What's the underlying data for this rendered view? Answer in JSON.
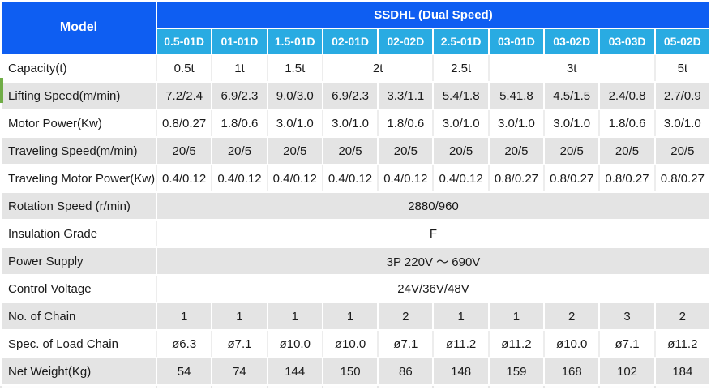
{
  "table": {
    "model_label": "Model",
    "series_title": "SSDHL (Dual Speed)",
    "models": [
      "0.5-01D",
      "01-01D",
      "1.5-01D",
      "02-01D",
      "02-02D",
      "2.5-01D",
      "03-01D",
      "03-02D",
      "03-03D",
      "05-02D"
    ],
    "rows": [
      {
        "label": "Capacity(t)",
        "shade": false,
        "cells": [
          {
            "text": "0.5t",
            "span": 1
          },
          {
            "text": "1t",
            "span": 1
          },
          {
            "text": "1.5t",
            "span": 1
          },
          {
            "text": "2t",
            "span": 2
          },
          {
            "text": "2.5t",
            "span": 1
          },
          {
            "text": "3t",
            "span": 3
          },
          {
            "text": "5t",
            "span": 1
          }
        ]
      },
      {
        "label": "Lifting Speed(m/min)",
        "shade": true,
        "accent": true,
        "cells": [
          {
            "text": "7.2/2.4",
            "span": 1
          },
          {
            "text": "6.9/2.3",
            "span": 1
          },
          {
            "text": "9.0/3.0",
            "span": 1
          },
          {
            "text": "6.9/2.3",
            "span": 1
          },
          {
            "text": "3.3/1.1",
            "span": 1
          },
          {
            "text": "5.4/1.8",
            "span": 1
          },
          {
            "text": "5.41.8",
            "span": 1
          },
          {
            "text": "4.5/1.5",
            "span": 1
          },
          {
            "text": "2.4/0.8",
            "span": 1
          },
          {
            "text": "2.7/0.9",
            "span": 1
          }
        ]
      },
      {
        "label": "Motor Power(Kw)",
        "shade": false,
        "cells": [
          {
            "text": "0.8/0.27",
            "span": 1
          },
          {
            "text": "1.8/0.6",
            "span": 1
          },
          {
            "text": "3.0/1.0",
            "span": 1
          },
          {
            "text": "3.0/1.0",
            "span": 1
          },
          {
            "text": "1.8/0.6",
            "span": 1
          },
          {
            "text": "3.0/1.0",
            "span": 1
          },
          {
            "text": "3.0/1.0",
            "span": 1
          },
          {
            "text": "3.0/1.0",
            "span": 1
          },
          {
            "text": "1.8/0.6",
            "span": 1
          },
          {
            "text": "3.0/1.0",
            "span": 1
          }
        ]
      },
      {
        "label": "Traveling Speed(m/min)",
        "shade": true,
        "cells": [
          {
            "text": "20/5",
            "span": 1
          },
          {
            "text": "20/5",
            "span": 1
          },
          {
            "text": "20/5",
            "span": 1
          },
          {
            "text": "20/5",
            "span": 1
          },
          {
            "text": "20/5",
            "span": 1
          },
          {
            "text": "20/5",
            "span": 1
          },
          {
            "text": "20/5",
            "span": 1
          },
          {
            "text": "20/5",
            "span": 1
          },
          {
            "text": "20/5",
            "span": 1
          },
          {
            "text": "20/5",
            "span": 1
          }
        ]
      },
      {
        "label": "Traveling Motor Power(Kw)",
        "shade": false,
        "cells": [
          {
            "text": "0.4/0.12",
            "span": 1
          },
          {
            "text": "0.4/0.12",
            "span": 1
          },
          {
            "text": "0.4/0.12",
            "span": 1
          },
          {
            "text": "0.4/0.12",
            "span": 1
          },
          {
            "text": "0.4/0.12",
            "span": 1
          },
          {
            "text": "0.4/0.12",
            "span": 1
          },
          {
            "text": "0.8/0.27",
            "span": 1
          },
          {
            "text": "0.8/0.27",
            "span": 1
          },
          {
            "text": "0.8/0.27",
            "span": 1
          },
          {
            "text": "0.8/0.27",
            "span": 1
          }
        ]
      },
      {
        "label": "Rotation Speed (r/min)",
        "shade": true,
        "cells": [
          {
            "text": "2880/960",
            "span": 10
          }
        ]
      },
      {
        "label": "Insulation Grade",
        "shade": false,
        "cells": [
          {
            "text": "F",
            "span": 10
          }
        ]
      },
      {
        "label": "Power Supply",
        "shade": true,
        "cells": [
          {
            "text": "3P 220V ～ 690V",
            "span": 10
          }
        ]
      },
      {
        "label": "Control Voltage",
        "shade": false,
        "cells": [
          {
            "text": "24V/36V/48V",
            "span": 10
          }
        ]
      },
      {
        "label": "No. of Chain",
        "shade": true,
        "cells": [
          {
            "text": "1",
            "span": 1
          },
          {
            "text": "1",
            "span": 1
          },
          {
            "text": "1",
            "span": 1
          },
          {
            "text": "1",
            "span": 1
          },
          {
            "text": "2",
            "span": 1
          },
          {
            "text": "1",
            "span": 1
          },
          {
            "text": "1",
            "span": 1
          },
          {
            "text": "2",
            "span": 1
          },
          {
            "text": "3",
            "span": 1
          },
          {
            "text": "2",
            "span": 1
          }
        ]
      },
      {
        "label": "Spec. of Load Chain",
        "shade": false,
        "cells": [
          {
            "text": "ø6.3",
            "span": 1
          },
          {
            "text": "ø7.1",
            "span": 1
          },
          {
            "text": "ø10.0",
            "span": 1
          },
          {
            "text": "ø10.0",
            "span": 1
          },
          {
            "text": "ø7.1",
            "span": 1
          },
          {
            "text": "ø11.2",
            "span": 1
          },
          {
            "text": "ø11.2",
            "span": 1
          },
          {
            "text": "ø10.0",
            "span": 1
          },
          {
            "text": "ø7.1",
            "span": 1
          },
          {
            "text": "ø11.2",
            "span": 1
          }
        ]
      },
      {
        "label": "Net Weight(Kg)",
        "shade": true,
        "cells": [
          {
            "text": "54",
            "span": 1
          },
          {
            "text": "74",
            "span": 1
          },
          {
            "text": "144",
            "span": 1
          },
          {
            "text": "150",
            "span": 1
          },
          {
            "text": "86",
            "span": 1
          },
          {
            "text": "148",
            "span": 1
          },
          {
            "text": "159",
            "span": 1
          },
          {
            "text": "168",
            "span": 1
          },
          {
            "text": "102",
            "span": 1
          },
          {
            "text": "184",
            "span": 1
          }
        ]
      }
    ]
  },
  "colors": {
    "header_blue": "#0e5ef2",
    "model_blue": "#29abe2",
    "shade_gray": "#e4e4e4",
    "accent_green": "#70ad47"
  }
}
